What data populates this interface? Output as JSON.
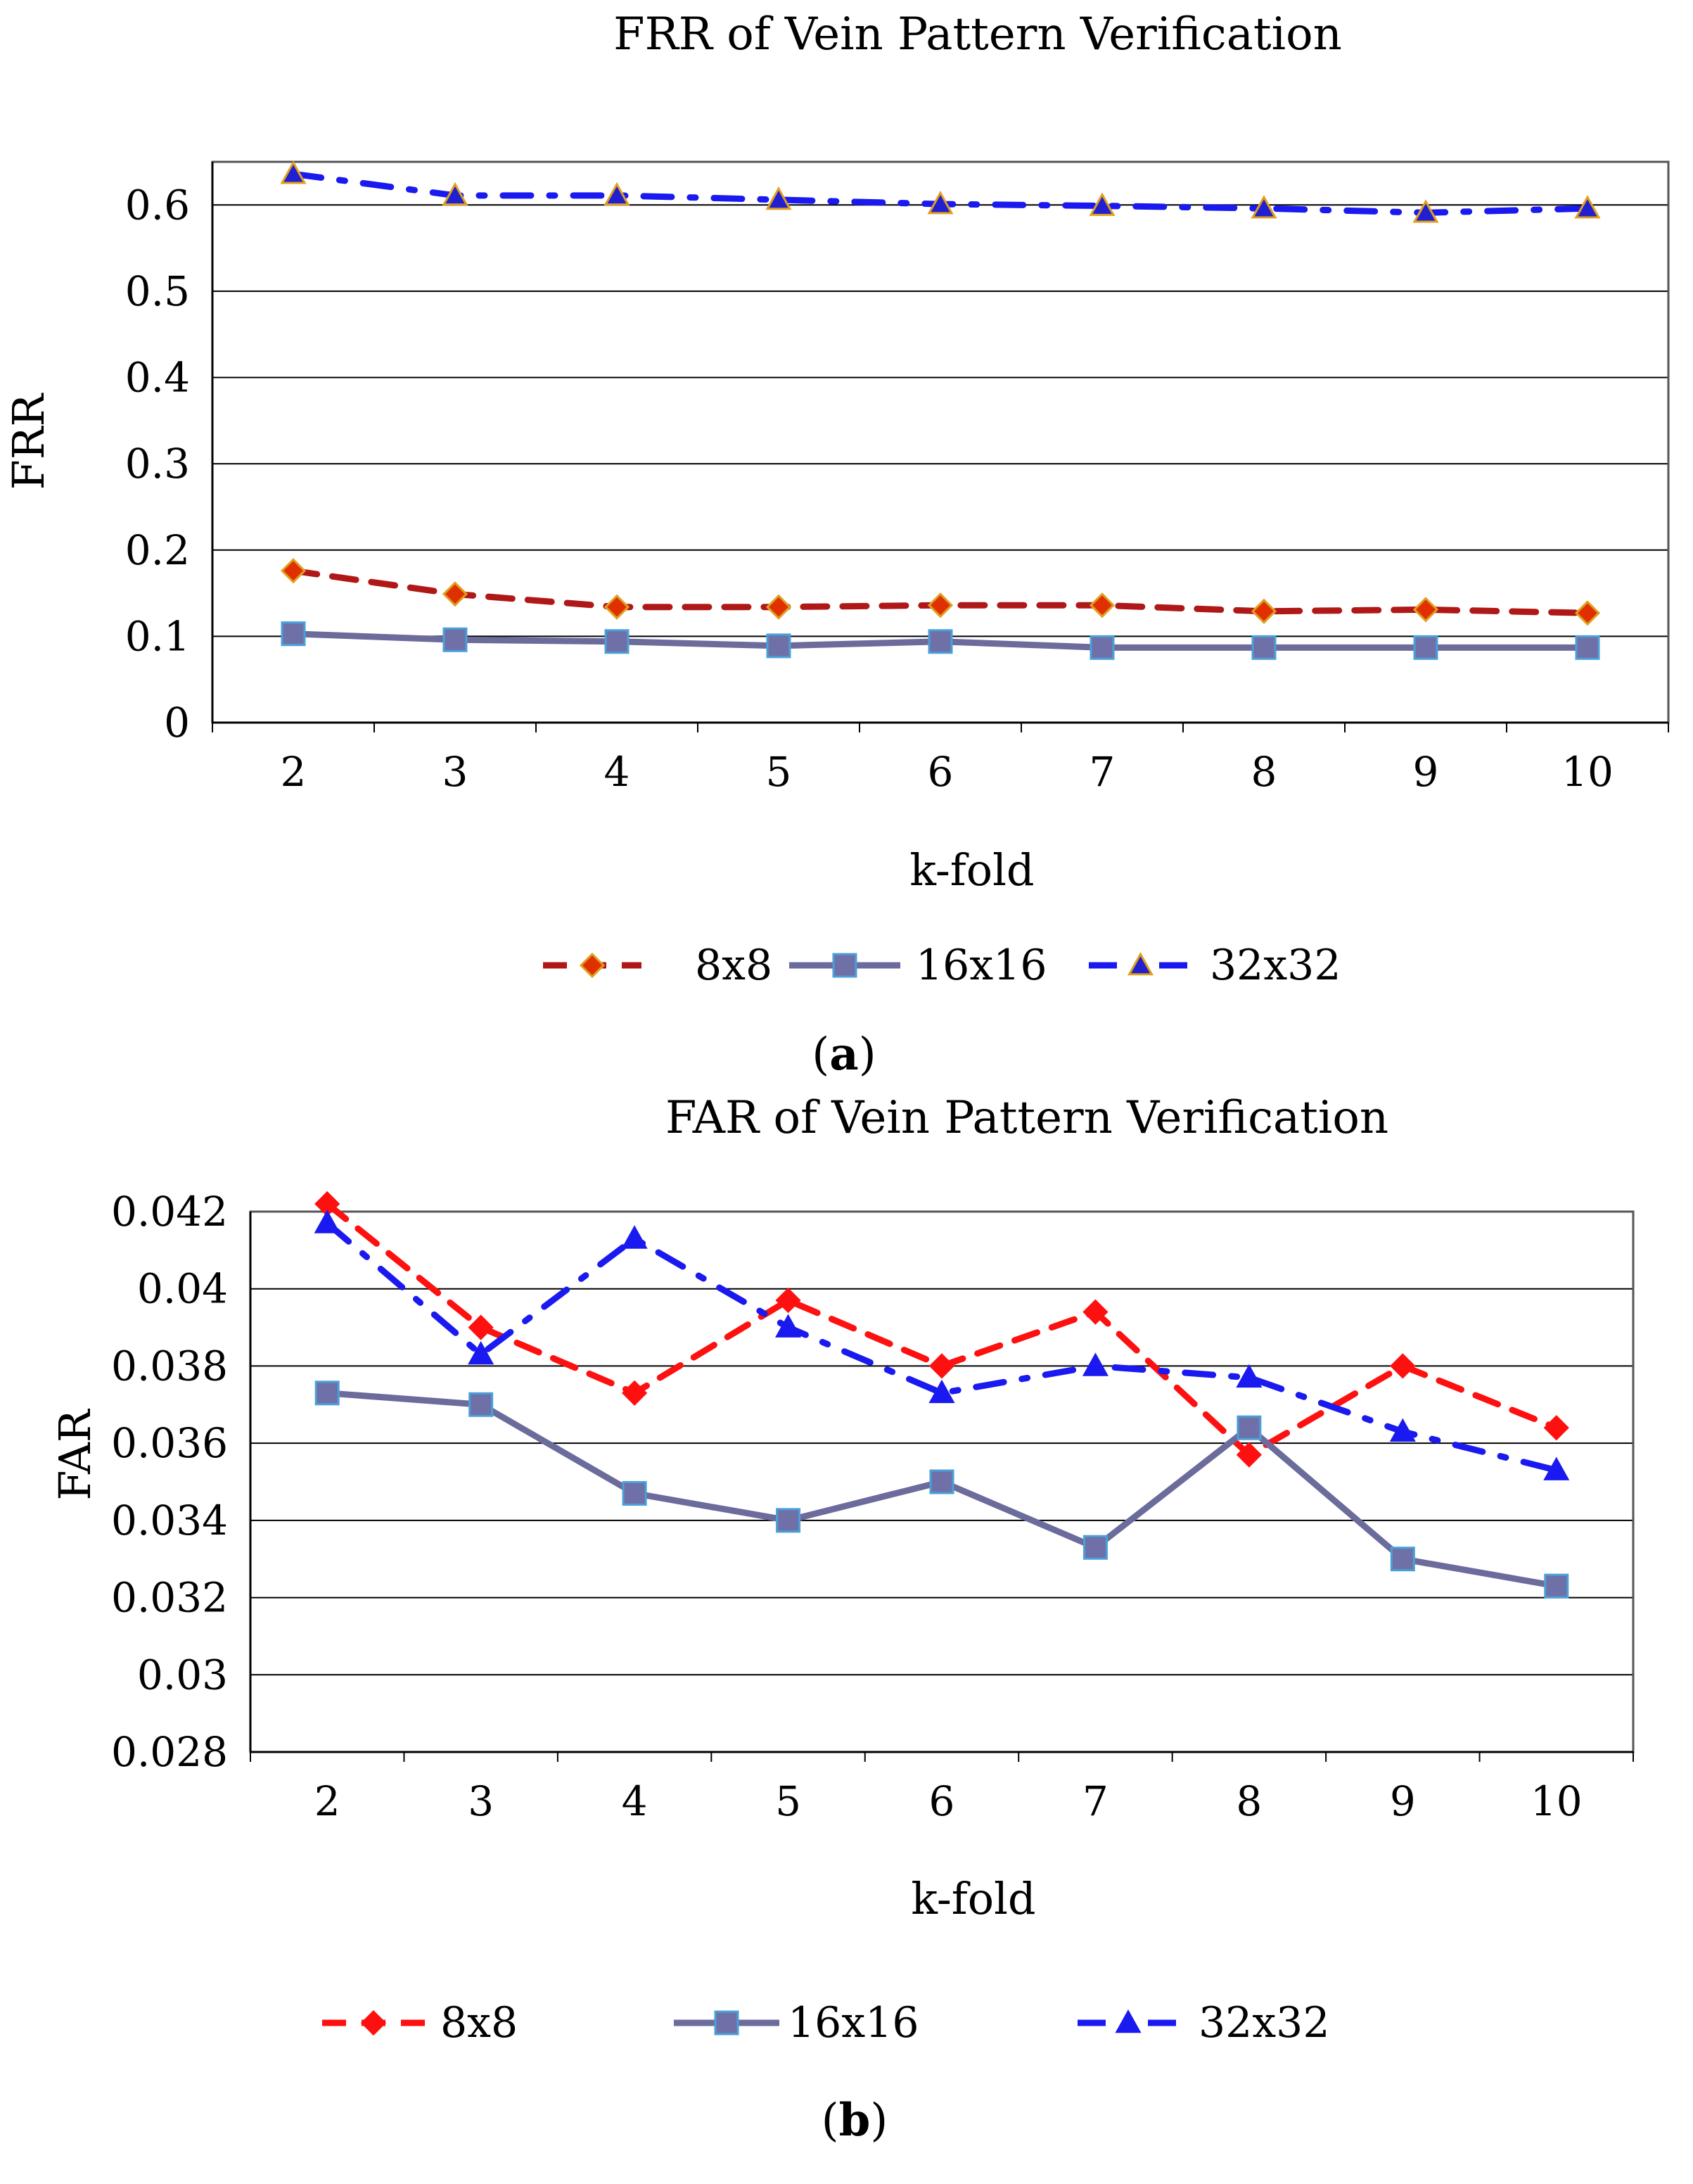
{
  "chart_data": [
    {
      "type": "line",
      "panel_label": "a",
      "title": "FRR of Vein Pattern Verification",
      "xlabel": "k-fold",
      "ylabel": "FRR",
      "categories": [
        "2",
        "3",
        "4",
        "5",
        "6",
        "7",
        "8",
        "9",
        "10"
      ],
      "ylim": [
        0,
        0.65
      ],
      "yticks": [
        0,
        0.1,
        0.2,
        0.3,
        0.4,
        0.5,
        0.6
      ],
      "ytick_labels": [
        "0",
        "0.1",
        "0.2",
        "0.3",
        "0.4",
        "0.5",
        "0.6"
      ],
      "grid": true,
      "legend_position": "bottom",
      "series": [
        {
          "name": "8x8",
          "values": [
            0.176,
            0.149,
            0.134,
            0.134,
            0.136,
            0.136,
            0.129,
            0.131,
            0.127
          ],
          "color": "#b01818",
          "marker": "diamond",
          "marker_color": "#e03000",
          "dash": "dash"
        },
        {
          "name": "16x16",
          "values": [
            0.103,
            0.096,
            0.094,
            0.089,
            0.094,
            0.087,
            0.087,
            0.087,
            0.087
          ],
          "color": "#6b6b9c",
          "marker": "square",
          "marker_color": "#7070a8",
          "dash": "solid"
        },
        {
          "name": "32x32",
          "values": [
            0.636,
            0.611,
            0.611,
            0.606,
            0.601,
            0.599,
            0.596,
            0.591,
            0.596
          ],
          "color": "#1a1af0",
          "marker": "triangle",
          "marker_color": "#2020d0",
          "dash": "dashdot"
        }
      ]
    },
    {
      "type": "line",
      "panel_label": "b",
      "title": "FAR of Vein Pattern Verification",
      "xlabel": "k-fold",
      "ylabel": "FAR",
      "categories": [
        "2",
        "3",
        "4",
        "5",
        "6",
        "7",
        "8",
        "9",
        "10"
      ],
      "ylim": [
        0.028,
        0.042
      ],
      "yticks": [
        0.028,
        0.03,
        0.032,
        0.034,
        0.036,
        0.038,
        0.04,
        0.042
      ],
      "ytick_labels": [
        "0.028",
        "0.03",
        "0.032",
        "0.034",
        "0.036",
        "0.038",
        "0.04",
        "0.042"
      ],
      "grid": true,
      "legend_position": "bottom",
      "series": [
        {
          "name": "8x8",
          "values": [
            0.0422,
            0.039,
            0.0373,
            0.0397,
            0.038,
            0.0394,
            0.0357,
            0.038,
            0.0364
          ],
          "color": "#ff1010",
          "marker": "diamond",
          "marker_color": "#ff1010",
          "dash": "dash"
        },
        {
          "name": "16x16",
          "values": [
            0.0373,
            0.037,
            0.0347,
            0.034,
            0.035,
            0.0333,
            0.0364,
            0.033,
            0.0323
          ],
          "color": "#6b6b9c",
          "marker": "square",
          "marker_color": "#7070a8",
          "dash": "solid"
        },
        {
          "name": "32x32",
          "values": [
            0.0417,
            0.0383,
            0.0413,
            0.039,
            0.0373,
            0.038,
            0.0377,
            0.0363,
            0.0353
          ],
          "color": "#1a1af0",
          "marker": "triangle",
          "marker_color": "#1a1af0",
          "dash": "dashdot"
        }
      ]
    }
  ]
}
